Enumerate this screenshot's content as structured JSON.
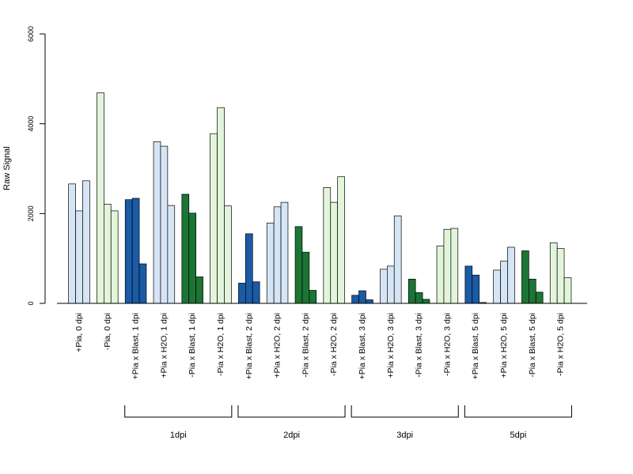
{
  "chart_data": {
    "type": "bar",
    "ylabel": "Raw Signal",
    "xlabel": "",
    "ylim": [
      0,
      6000
    ],
    "yticks": [
      0,
      2000,
      4000,
      6000
    ],
    "grid": false,
    "categories": [
      "+Pia, 0 dpi",
      "-Pia, 0 dpi",
      "+Pia x Blast, 1 dpi",
      "+Pia x H2O, 1 dpi",
      "-Pia x Blast, 1 dpi",
      "-Pia x H2O, 1 dpi",
      "+Pia x Blast, 2 dpi",
      "+Pia x H2O, 2 dpi",
      "-Pia x Blast, 2 dpi",
      "-Pia x H2O, 2 dpi",
      "+Pia x Blast, 3 dpi",
      "+Pia x H2O, 3 dpi",
      "-Pia x Blast, 3 dpi",
      "-Pia x H2O, 3 dpi",
      "+Pia x Blast, 5 dpi",
      "+Pia x H2O, 5 dpi",
      "-Pia x Blast, 5 dpi",
      "-Pia x H2O, 5 dpi"
    ],
    "values": [
      [
        2660,
        2060,
        2730
      ],
      [
        4690,
        2210,
        2060
      ],
      [
        2310,
        2340,
        880
      ],
      [
        3600,
        3500,
        2180
      ],
      [
        2430,
        2010,
        590
      ],
      [
        3780,
        4360,
        2170
      ],
      [
        450,
        1550,
        480
      ],
      [
        1790,
        2150,
        2250
      ],
      [
        1710,
        1140,
        290
      ],
      [
        2580,
        2250,
        2820
      ],
      [
        180,
        280,
        80
      ],
      [
        760,
        830,
        1950
      ],
      [
        540,
        240,
        90
      ],
      [
        1280,
        1650,
        1670
      ],
      [
        830,
        630,
        20
      ],
      [
        740,
        940,
        1250
      ],
      [
        1170,
        540,
        250
      ],
      [
        1350,
        1220,
        570
      ]
    ],
    "bar_colors": [
      "#D6E5F5",
      "#E2F5DA",
      "#1A5BA6",
      "#D6E5F5",
      "#1B7534",
      "#E2F5DA",
      "#1A5BA6",
      "#D6E5F5",
      "#1B7534",
      "#E2F5DA",
      "#1A5BA6",
      "#D6E5F5",
      "#1B7534",
      "#E2F5DA",
      "#1A5BA6",
      "#D6E5F5",
      "#1B7534",
      "#E2F5DA"
    ],
    "groups": [
      {
        "label": "1dpi",
        "from": 2,
        "to": 5
      },
      {
        "label": "2dpi",
        "from": 6,
        "to": 9
      },
      {
        "label": "3dpi",
        "from": 10,
        "to": 13
      },
      {
        "label": "5dpi",
        "from": 14,
        "to": 17
      }
    ]
  }
}
